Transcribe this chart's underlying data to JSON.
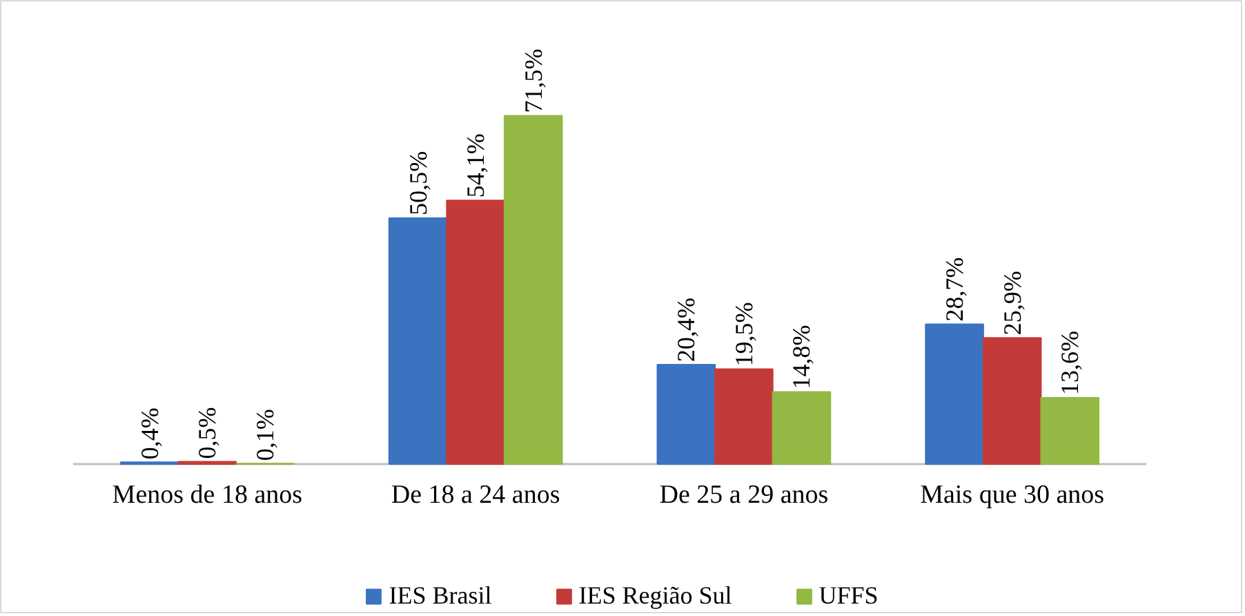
{
  "chart_data": {
    "type": "bar",
    "categories": [
      "Menos de 18 anos",
      "De 18 a 24 anos",
      "De 25 a 29 anos",
      "Mais que 30 anos"
    ],
    "series": [
      {
        "name": "IES Brasil",
        "color": "#3b73c0",
        "values": [
          0.4,
          50.5,
          20.4,
          28.7
        ],
        "value_labels": [
          "0,4%",
          "50,5%",
          "20,4%",
          "28,7%"
        ]
      },
      {
        "name": "IES Região Sul",
        "color": "#c33b38",
        "values": [
          0.5,
          54.1,
          19.5,
          25.9
        ],
        "value_labels": [
          "0,5%",
          "54,1%",
          "19,5%",
          "25,9%"
        ]
      },
      {
        "name": "UFFS",
        "color": "#93b843",
        "values": [
          0.1,
          71.5,
          14.8,
          13.6
        ],
        "value_labels": [
          "0,1%",
          "71,5%",
          "14,8%",
          "13,6%"
        ]
      }
    ],
    "legend": "bottom",
    "grid": false
  }
}
